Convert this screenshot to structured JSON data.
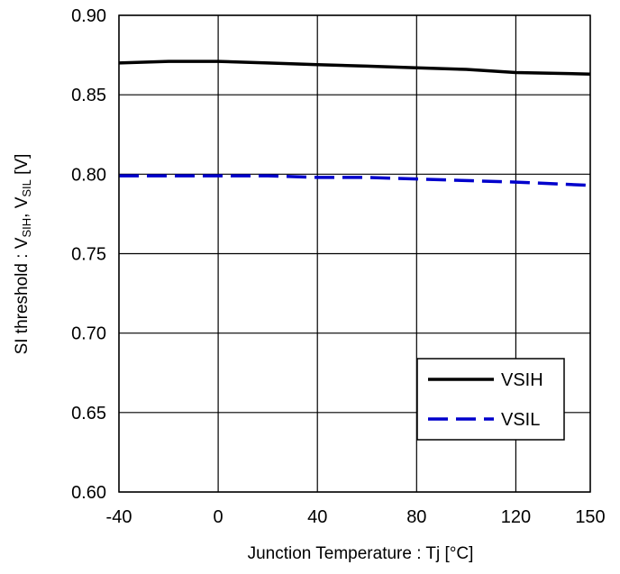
{
  "chart_data": {
    "type": "line",
    "xlabel": "Junction Temperature : Tj [°C]",
    "ylabel_parts": {
      "prefix": "SI threshold : V",
      "sub1": "SIH",
      "mid": ", V",
      "sub2": "SIL",
      "suffix": " [V]"
    },
    "xlim": [
      -40,
      150
    ],
    "ylim": [
      0.6,
      0.9
    ],
    "x_ticks": [
      -40,
      0,
      40,
      80,
      120,
      150
    ],
    "x_tick_labels": [
      "-40",
      "0",
      "40",
      "80",
      "120",
      "150"
    ],
    "y_ticks": [
      0.6,
      0.65,
      0.7,
      0.75,
      0.8,
      0.85,
      0.9
    ],
    "y_tick_labels": [
      "0.60",
      "0.65",
      "0.70",
      "0.75",
      "0.80",
      "0.85",
      "0.90"
    ],
    "grid": true,
    "legend_position": "bottom-right",
    "series": [
      {
        "name": "VSIH",
        "color": "#000000",
        "style": "solid",
        "x": [
          -40,
          -20,
          0,
          20,
          40,
          60,
          80,
          100,
          120,
          150
        ],
        "y": [
          0.87,
          0.871,
          0.871,
          0.87,
          0.869,
          0.868,
          0.867,
          0.866,
          0.864,
          0.863
        ]
      },
      {
        "name": "VSIL",
        "color": "#0000cc",
        "style": "dashed",
        "x": [
          -40,
          -20,
          0,
          20,
          40,
          60,
          80,
          100,
          120,
          150
        ],
        "y": [
          0.799,
          0.799,
          0.799,
          0.799,
          0.798,
          0.798,
          0.797,
          0.796,
          0.795,
          0.793
        ]
      }
    ]
  }
}
